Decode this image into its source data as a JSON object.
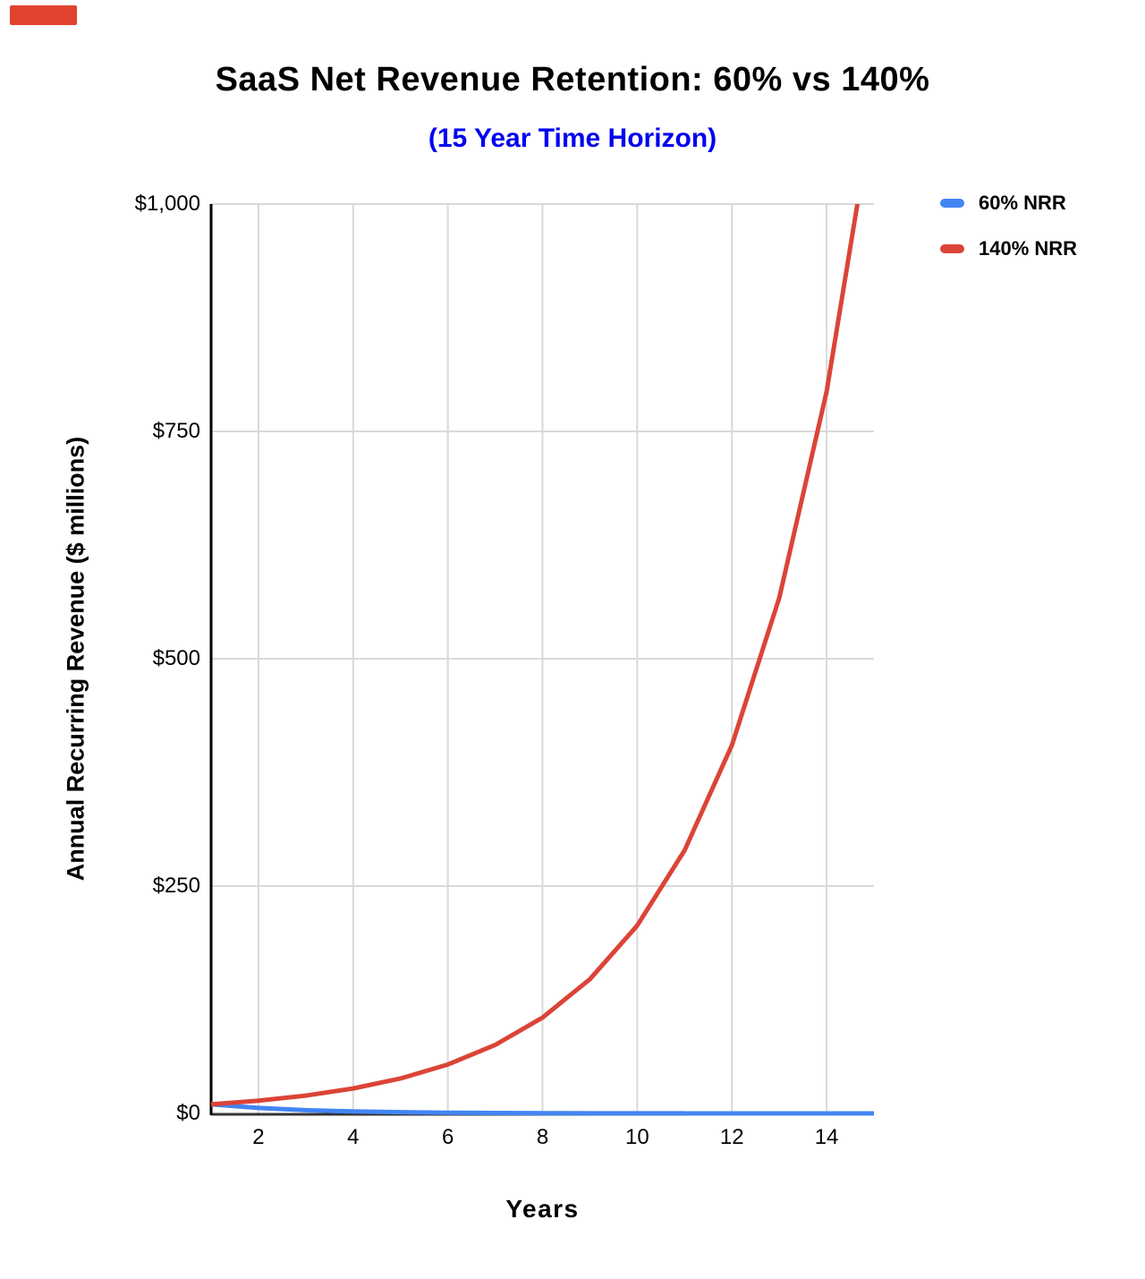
{
  "marker": {
    "color": "#e2432e"
  },
  "colors": {
    "subtitle": "#0000f0",
    "gridline": "#d9d9d9",
    "y_axis_line": "#000000",
    "x_baseline": "#333333",
    "text": "#000000",
    "background": "#ffffff"
  },
  "chart_data": {
    "type": "line",
    "title": "SaaS Net Revenue Retention: 60% vs 140%",
    "subtitle": "(15 Year Time Horizon)",
    "xlabel": "Years",
    "ylabel": "Annual Recurring Revenue ($ millions)",
    "x": [
      1,
      2,
      3,
      4,
      5,
      6,
      7,
      8,
      9,
      10,
      11,
      12,
      13,
      14,
      15
    ],
    "series": [
      {
        "name": "60% NRR",
        "color": "#4285f4",
        "values": [
          10,
          6,
          3.6,
          2.16,
          1.3,
          0.78,
          0.47,
          0.28,
          0.17,
          0.1,
          0.06,
          0.04,
          0.02,
          0.01,
          0.01
        ]
      },
      {
        "name": "140% NRR",
        "color": "#db4437",
        "values": [
          10,
          14,
          19.6,
          27.44,
          38.42,
          53.78,
          75.3,
          105.41,
          147.58,
          206.61,
          289.25,
          404.96,
          566.94,
          793.71,
          1111.2
        ]
      }
    ],
    "xlim": [
      1,
      15
    ],
    "ylim": [
      0,
      1000
    ],
    "x_ticks": [
      {
        "value": 2,
        "label": "2"
      },
      {
        "value": 4,
        "label": "4"
      },
      {
        "value": 6,
        "label": "6"
      },
      {
        "value": 8,
        "label": "8"
      },
      {
        "value": 10,
        "label": "10"
      },
      {
        "value": 12,
        "label": "12"
      },
      {
        "value": 14,
        "label": "14"
      }
    ],
    "y_ticks": [
      {
        "value": 0,
        "label": "$0"
      },
      {
        "value": 250,
        "label": "$250"
      },
      {
        "value": 500,
        "label": "$500"
      },
      {
        "value": 750,
        "label": "$750"
      },
      {
        "value": 1000,
        "label": "$1,000"
      }
    ],
    "grid": true,
    "legend_position": "top-right"
  }
}
